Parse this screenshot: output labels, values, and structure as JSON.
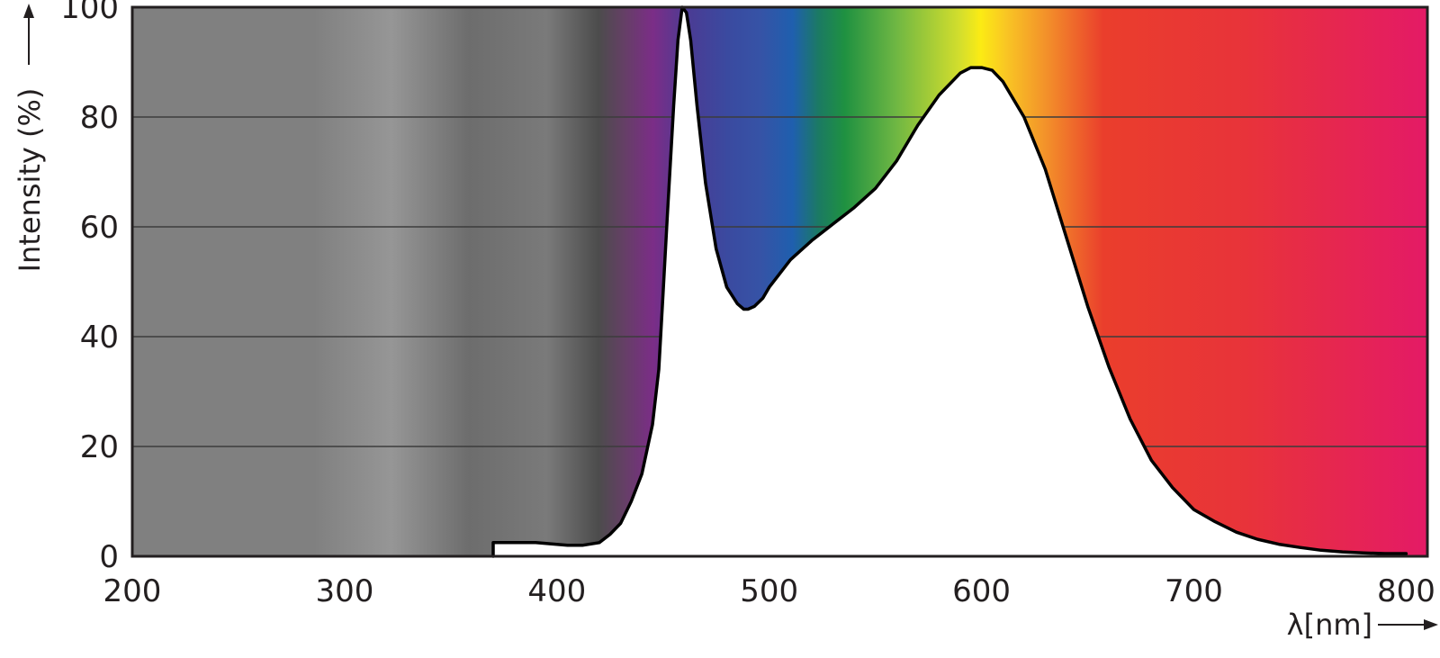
{
  "chart_data": {
    "type": "area",
    "title": "",
    "xlabel": "λ[nm]",
    "ylabel": "Intensity (%)",
    "xlim": [
      200,
      810
    ],
    "ylim": [
      0,
      100
    ],
    "grid": true,
    "legend": "none",
    "x_ticks": [
      "200",
      "300",
      "400",
      "500",
      "600",
      "700",
      "800"
    ],
    "y_ticks": [
      "0",
      "20",
      "40",
      "60",
      "80",
      "100"
    ],
    "background": "visible light spectrum gradient (grey ultraviolet region, violet to red)",
    "series": [
      {
        "x": [
          370,
          370,
          390,
          405,
          412,
          420,
          425,
          430,
          435,
          440,
          445,
          448,
          450,
          452,
          455,
          457,
          459,
          461,
          463,
          466,
          470,
          475,
          480,
          485,
          488,
          490,
          493,
          497,
          500,
          510,
          520,
          530,
          540,
          550,
          560,
          570,
          580,
          590,
          595,
          600,
          605,
          610,
          620,
          630,
          640,
          650,
          660,
          670,
          680,
          690,
          700,
          710,
          720,
          730,
          740,
          750,
          760,
          770,
          780,
          790,
          800
        ],
        "y": [
          0,
          2.5,
          2.5,
          2,
          2,
          2.5,
          4,
          6,
          10,
          15,
          24,
          34,
          48,
          62,
          82,
          94,
          100,
          99,
          94,
          82,
          68,
          56,
          49,
          46,
          45,
          45,
          45.5,
          47,
          49,
          54,
          57.5,
          60.5,
          63.5,
          67,
          72,
          78.5,
          84,
          88,
          89,
          89,
          88.5,
          86.5,
          80,
          70.5,
          58,
          45.5,
          34.5,
          25,
          17.5,
          12.5,
          8.5,
          6.3,
          4.4,
          3.1,
          2.2,
          1.6,
          1.1,
          0.8,
          0.6,
          0.5,
          0.5
        ]
      }
    ],
    "colors": {
      "curve_fill": "#ffffff",
      "curve_stroke": "#000000",
      "gridline": "#3c3c3c",
      "frame": "#231f20"
    }
  }
}
